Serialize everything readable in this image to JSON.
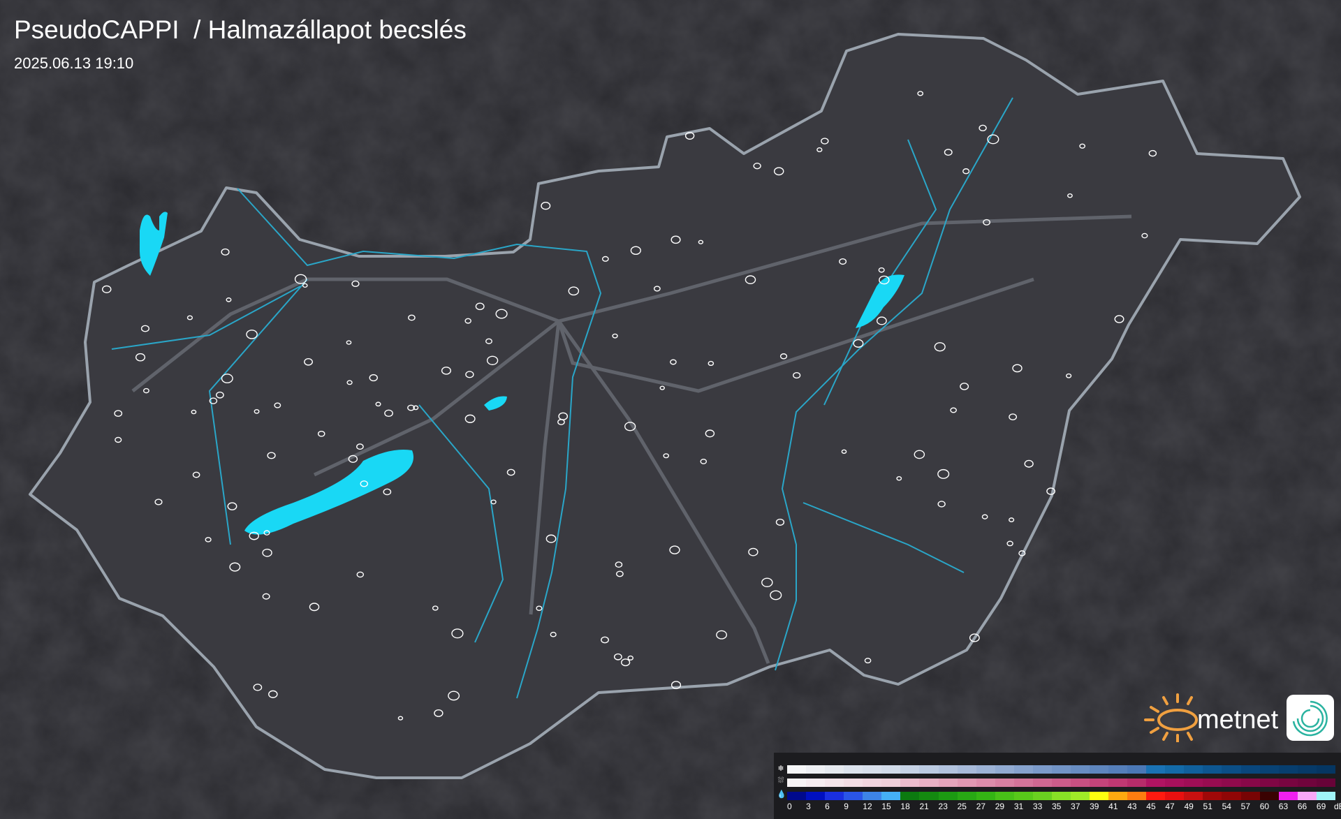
{
  "header": {
    "title": "PseudoCAPPI  / Halmazállapot becslés",
    "timestamp": "2025.06.13 19:10"
  },
  "logo": {
    "text": "metnet",
    "sun_color": "#f0a040",
    "app_icon_color": "#2ab3a0"
  },
  "map": {
    "background": "#2b2b30",
    "country_fill": "#3a3a40",
    "border_color": "#9aa3ad",
    "river_color": "#2aa6c8",
    "water_color": "#19d8f5",
    "city_outline_color": "#ffffff"
  },
  "legend": {
    "icons": {
      "snow": "snowflake-icon",
      "mixed": "sleet-icon",
      "rain": "raindrop-icon"
    },
    "labels": [
      "0",
      "3",
      "6",
      "9",
      "12",
      "15",
      "18",
      "21",
      "23",
      "25",
      "27",
      "29",
      "31",
      "33",
      "35",
      "37",
      "39",
      "41",
      "43",
      "45",
      "47",
      "49",
      "51",
      "54",
      "57",
      "60",
      "63",
      "66",
      "69"
    ],
    "unit": "dBZ",
    "rain_colors": [
      "#000a8c",
      "#0010c0",
      "#1a2fe0",
      "#2a55e8",
      "#3d84e8",
      "#45b0f5",
      "#0c7a10",
      "#148a10",
      "#1c9a12",
      "#28a814",
      "#34b414",
      "#48c018",
      "#58c81a",
      "#6ad020",
      "#88e026",
      "#a0ea28",
      "#ffff10",
      "#ffaa10",
      "#ff7d10",
      "#ff1a10",
      "#e81010",
      "#c81010",
      "#a00808",
      "#900606",
      "#780404",
      "#3a0202",
      "#f020f0",
      "#f8a8f8",
      "#a0f4f8"
    ],
    "snow_colors": [
      "#f6f7f9",
      "#eef0f4",
      "#e6eaf0",
      "#dde4ee",
      "#d8e0ec",
      "#d2dcea",
      "#c6d3e6",
      "#bccbe2",
      "#b2c3de",
      "#a8bbda",
      "#9db3d6",
      "#92abd2",
      "#87a3ce",
      "#7c9bca",
      "#7294c6",
      "#688dc2",
      "#5e86be",
      "#557fba",
      "#4b78b6",
      "#1a72b4",
      "#136aa8",
      "#10609c",
      "#0d5690",
      "#0b4e86",
      "#09467c",
      "#084274",
      "#073e6e",
      "#063a68",
      "#053662"
    ],
    "mixed_colors": [
      "#f8f4f6",
      "#f6ecf0",
      "#f4e4ea",
      "#f2dce4",
      "#f0d4de",
      "#eecfd9",
      "#ecbccd",
      "#e8b0c4",
      "#e4a4bb",
      "#e098b2",
      "#dc8caa",
      "#d880a2",
      "#d4749a",
      "#d06892",
      "#cc5c8a",
      "#c85082",
      "#c4447a",
      "#c03872",
      "#b82c6a",
      "#b01462",
      "#a8105c",
      "#a00e56",
      "#980c50",
      "#900a4c",
      "#880848",
      "#800644",
      "#780540",
      "#70043c",
      "#680338"
    ]
  }
}
